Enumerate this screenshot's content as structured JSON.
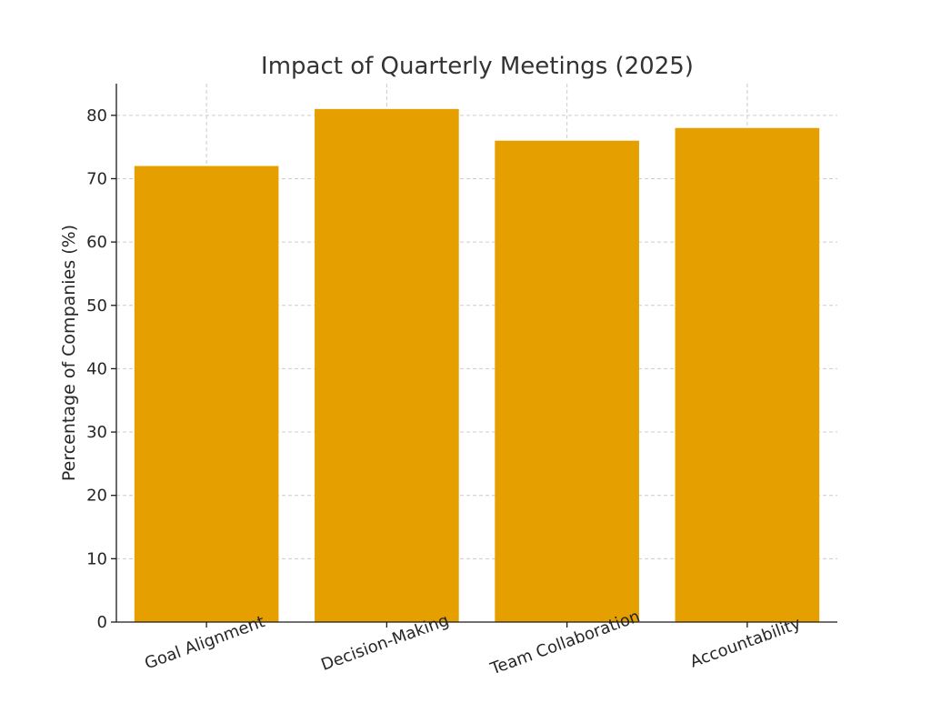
{
  "chart_data": {
    "type": "bar",
    "title": "Impact of Quarterly Meetings (2025)",
    "xlabel": "",
    "ylabel": "Percentage of Companies (%)",
    "categories": [
      "Goal Alignment",
      "Decision-Making",
      "Team Collaboration",
      "Accountability"
    ],
    "values": [
      72,
      81,
      76,
      78
    ],
    "ylim": [
      0,
      85
    ],
    "yticks": [
      0,
      10,
      20,
      30,
      40,
      50,
      60,
      70,
      80
    ],
    "grid": true,
    "bar_color": "#E5A000"
  }
}
